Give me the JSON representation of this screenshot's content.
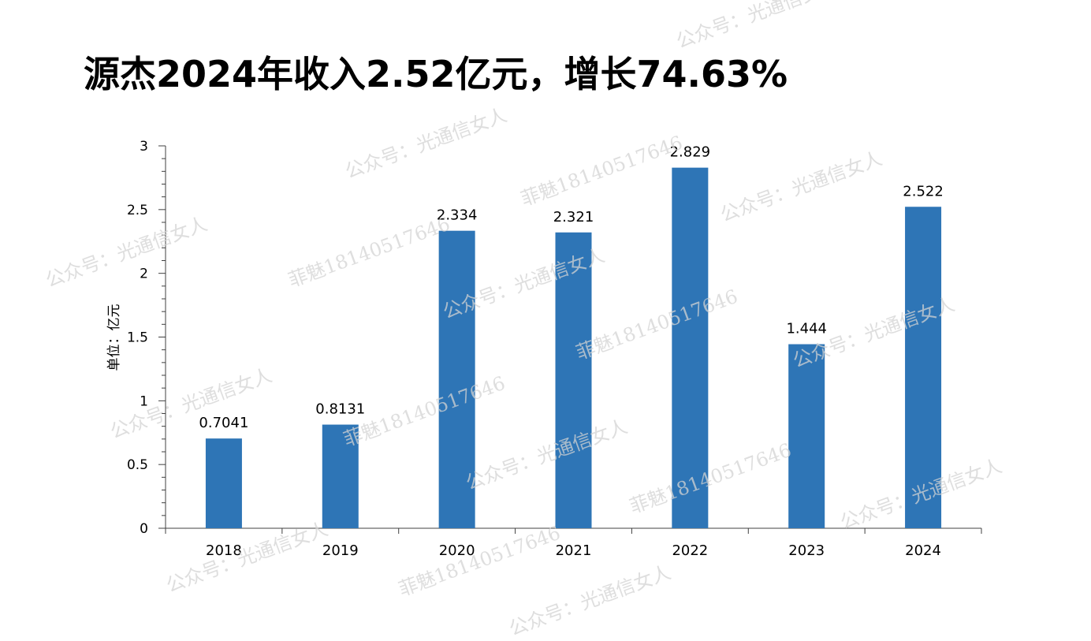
{
  "title": "源杰2024年收入2.52亿元，增长74.63%",
  "watermarks": {
    "account": "公众号：光通信女人",
    "contact": "菲魅18140517646"
  },
  "colors": {
    "bar": "#2e75b6",
    "axis": "#404040",
    "text": "#000000"
  },
  "chart_data": {
    "type": "bar",
    "categories": [
      "2018",
      "2019",
      "2020",
      "2021",
      "2022",
      "2023",
      "2024"
    ],
    "series": [
      {
        "values": [
          0.7041,
          0.8131,
          2.334,
          2.321,
          2.829,
          1.444,
          2.522
        ]
      }
    ],
    "data_labels": [
      "0.7041",
      "0.8131",
      "2.334",
      "2.321",
      "2.829",
      "1.444",
      "2.522"
    ],
    "title": "源杰2024年收入2.52亿元，增长74.63%",
    "xlabel": "",
    "ylabel": "单位：亿元",
    "ylim": [
      0,
      3
    ],
    "yticks": [
      0,
      0.5,
      1,
      1.5,
      2,
      2.5,
      3
    ],
    "ytick_labels": [
      "0",
      "0.5",
      "1",
      "1.5",
      "2",
      "2.5",
      "3"
    ],
    "grid": false,
    "legend": "none"
  }
}
